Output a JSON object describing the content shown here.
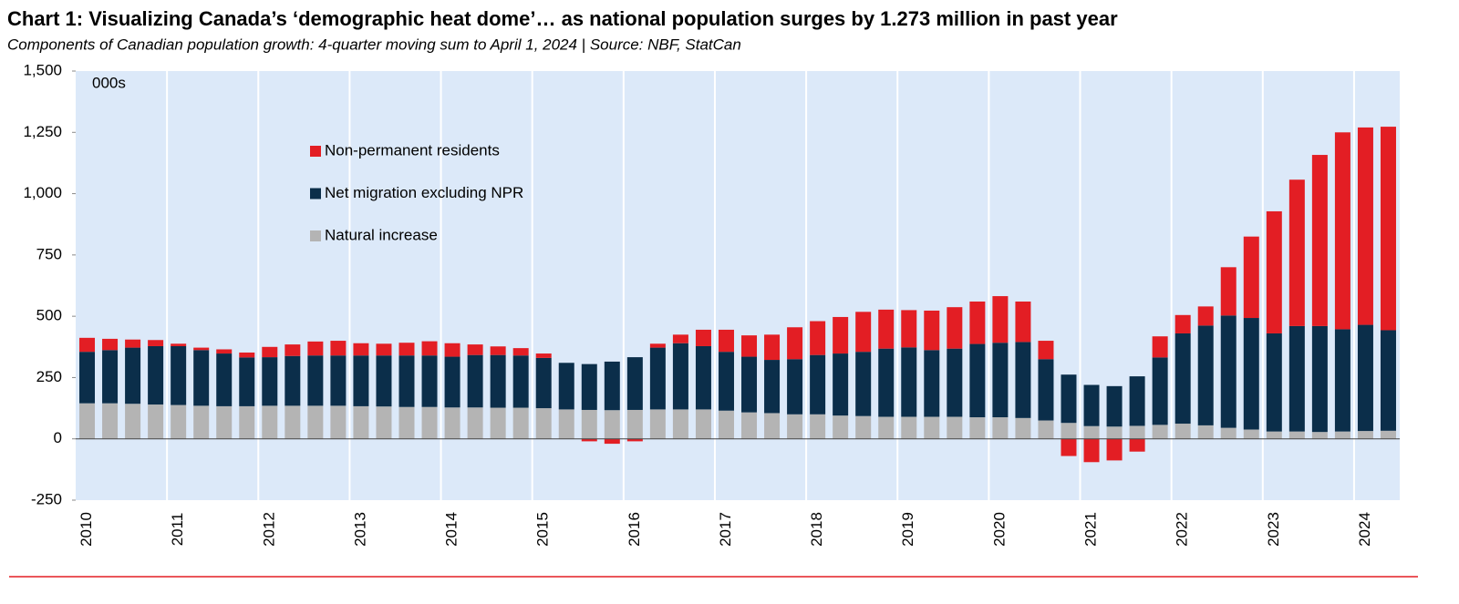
{
  "chart_data": {
    "type": "stacked-bar",
    "title": "Chart 1: Visualizing Canada’s ‘demographic heat dome’… as national population surges by 1.273 million in past year",
    "subtitle": "Components of Canadian population growth: 4-quarter moving sum to April 1, 2024  |  Source: NBF, StatCan",
    "annotation": "000s",
    "categories": [
      "2010",
      null,
      null,
      null,
      "2011",
      null,
      null,
      null,
      "2012",
      null,
      null,
      null,
      "2013",
      null,
      null,
      null,
      "2014",
      null,
      null,
      null,
      "2015",
      null,
      null,
      null,
      "2016",
      null,
      null,
      null,
      "2017",
      null,
      null,
      null,
      "2018",
      null,
      null,
      null,
      "2019",
      null,
      null,
      null,
      "2020",
      null,
      null,
      null,
      "2021",
      null,
      null,
      null,
      "2022",
      null,
      null,
      null,
      "2023",
      null,
      null,
      null,
      "2024",
      null
    ],
    "series": [
      {
        "name": "Natural increase",
        "color": "#b4b4b4",
        "values": [
          145,
          145,
          143,
          140,
          138,
          135,
          133,
          133,
          135,
          135,
          135,
          135,
          133,
          132,
          130,
          130,
          128,
          128,
          127,
          127,
          125,
          120,
          118,
          117,
          118,
          120,
          120,
          120,
          115,
          108,
          105,
          100,
          100,
          95,
          93,
          90,
          90,
          90,
          90,
          88,
          88,
          85,
          75,
          65,
          52,
          50,
          53,
          57,
          62,
          55,
          45,
          38,
          30,
          30,
          28,
          30,
          32,
          33
        ]
      },
      {
        "name": "Net migration excluding NPR",
        "color": "#0b2e4a",
        "values": [
          210,
          217,
          229,
          238,
          240,
          227,
          215,
          199,
          198,
          203,
          205,
          205,
          207,
          208,
          210,
          210,
          207,
          214,
          215,
          213,
          205,
          190,
          187,
          198,
          215,
          252,
          270,
          258,
          240,
          227,
          217,
          225,
          242,
          253,
          262,
          278,
          283,
          272,
          278,
          299,
          304,
          310,
          250,
          197,
          168,
          165,
          202,
          275,
          368,
          407,
          458,
          455,
          400,
          430,
          432,
          417,
          433,
          410
        ]
      },
      {
        "name": "Non-permanent residents",
        "color": "#e31e24",
        "values": [
          57,
          46,
          33,
          25,
          10,
          10,
          17,
          20,
          42,
          47,
          57,
          60,
          50,
          48,
          52,
          58,
          55,
          43,
          35,
          30,
          18,
          0,
          -10,
          -20,
          -10,
          16,
          35,
          67,
          90,
          87,
          103,
          130,
          138,
          149,
          163,
          159,
          152,
          161,
          169,
          173,
          190,
          165,
          75,
          -70,
          -95,
          -88,
          -52,
          86,
          75,
          78,
          197,
          332,
          498,
          597,
          698,
          803,
          805,
          830
        ]
      }
    ],
    "ylim": [
      -250,
      1500
    ],
    "yticks": [
      -250,
      0,
      250,
      500,
      750,
      {
        "value": 1000,
        "label": "1,000"
      },
      {
        "value": 1250,
        "label": "1,250"
      },
      {
        "value": 1500,
        "label": "1,500"
      }
    ],
    "background": "#dce9f9",
    "grid": true
  }
}
